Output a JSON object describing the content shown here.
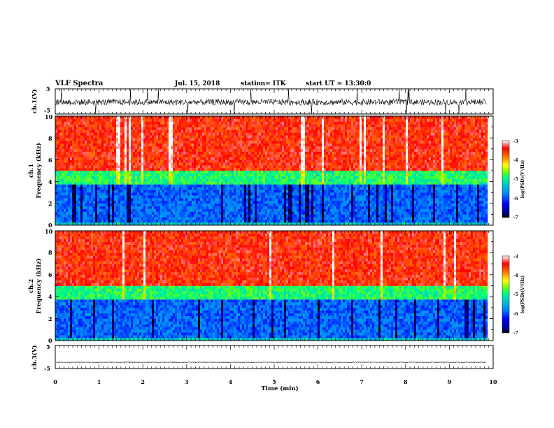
{
  "header": {
    "title": "VLF Spectra",
    "date": "Jul. 15, 2018",
    "station": "station= ITK",
    "start_ut": "start UT = 13:30:0"
  },
  "colors": {
    "waveform": "#000000",
    "colormap": [
      "#000000",
      "#00008b",
      "#0000ff",
      "#0080ff",
      "#00c8c8",
      "#00ff80",
      "#80ff00",
      "#ffff00",
      "#ff8000",
      "#ff0000",
      "#ffffff"
    ]
  },
  "chart_data": [
    {
      "type": "line",
      "id": "ch1-waveform",
      "ylabel": "ch.1(V)",
      "ylim": [
        -5,
        5
      ],
      "y_ticks": [
        "5",
        "-5"
      ],
      "xlim": [
        0,
        10
      ],
      "description_values": {
        "baseline": -0.3,
        "noise_amplitude": 1.2,
        "spike_peak": 5
      }
    },
    {
      "type": "heatmap",
      "id": "ch1-spectrogram",
      "ylabel_line1": "ch.1",
      "ylabel_line2": "Frequency (kHz)",
      "xlim": [
        0,
        9.85
      ],
      "ylim": [
        0,
        10
      ],
      "y_ticks": [
        "0",
        "2",
        "4",
        "6",
        "8",
        "10"
      ],
      "colorbar": {
        "label": "log(PSD)(V²/Hz)",
        "range": [
          -7,
          -3
        ],
        "ticks": [
          "-3",
          "-4",
          "-5",
          "-6",
          "-7"
        ]
      },
      "bands_khz": [
        {
          "range": [
            0,
            0.3
          ],
          "log_psd": -5.3
        },
        {
          "range": [
            0.3,
            3.8
          ],
          "log_psd": -5.9
        },
        {
          "range": [
            3.8,
            5.0
          ],
          "log_psd": -4.9
        },
        {
          "range": [
            5.0,
            10
          ],
          "log_psd": -3.5
        }
      ]
    },
    {
      "type": "heatmap",
      "id": "ch2-spectrogram",
      "ylabel_line1": "ch.2",
      "ylabel_line2": "Frequency (kHz)",
      "xlim": [
        0,
        9.85
      ],
      "ylim": [
        0,
        10
      ],
      "y_ticks": [
        "0",
        "2",
        "4",
        "6",
        "8",
        "10"
      ],
      "colorbar": {
        "label": "log(PSD)(V²/Hz)",
        "range": [
          -7,
          -3
        ],
        "ticks": [
          "-3",
          "-4",
          "-5",
          "-6",
          "-7"
        ]
      },
      "bands_khz": [
        {
          "range": [
            0,
            0.3
          ],
          "log_psd": -5.3
        },
        {
          "range": [
            0.3,
            3.8
          ],
          "log_psd": -5.9
        },
        {
          "range": [
            3.8,
            5.0
          ],
          "log_psd": -4.9
        },
        {
          "range": [
            5.0,
            10
          ],
          "log_psd": -3.5
        }
      ]
    },
    {
      "type": "line",
      "id": "ch3-waveform",
      "ylabel": "ch.3(V)",
      "ylim": [
        -5,
        5
      ],
      "y_ticks": [
        "5",
        "-5"
      ],
      "xlim": [
        0,
        10
      ],
      "description_values": {
        "baseline": -2.3,
        "noise_amplitude": 0.15
      }
    },
    {
      "type": "axis",
      "id": "time-axis",
      "xlabel": "Time (min)",
      "x_ticks": [
        "0",
        "1",
        "2",
        "3",
        "4",
        "5",
        "6",
        "7",
        "8",
        "9",
        "10"
      ],
      "xlim": [
        0,
        10
      ]
    }
  ]
}
